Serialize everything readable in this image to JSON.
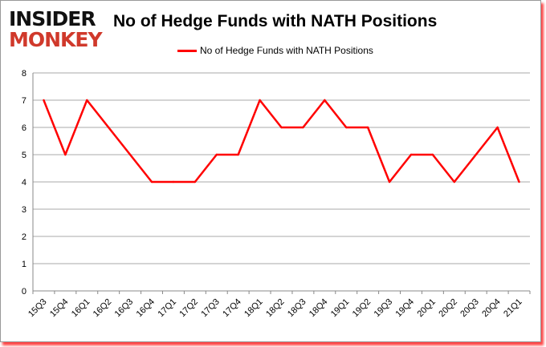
{
  "logo": {
    "line1": "INSIDER",
    "line2": "MONKEY"
  },
  "chart_data": {
    "type": "line",
    "title": "No of Hedge Funds with NATH Positions",
    "xlabel": "",
    "ylabel": "",
    "categories": [
      "15Q3",
      "15Q4",
      "16Q1",
      "16Q2",
      "16Q3",
      "16Q4",
      "17Q1",
      "17Q2",
      "17Q3",
      "17Q4",
      "18Q1",
      "18Q2",
      "18Q3",
      "18Q4",
      "19Q1",
      "19Q2",
      "19Q3",
      "19Q4",
      "20Q1",
      "20Q2",
      "20Q3",
      "20Q4",
      "21Q1"
    ],
    "series": [
      {
        "name": "No of Hedge Funds with NATH Positions",
        "color": "#ff0000",
        "values": [
          7,
          5,
          7,
          6,
          5,
          4,
          4,
          4,
          5,
          5,
          7,
          6,
          6,
          7,
          6,
          6,
          4,
          5,
          5,
          4,
          5,
          6,
          4
        ]
      }
    ],
    "ylim": [
      0,
      8
    ],
    "yticks": [
      0,
      1,
      2,
      3,
      4,
      5,
      6,
      7,
      8
    ],
    "grid": true,
    "legend": "top-center"
  }
}
